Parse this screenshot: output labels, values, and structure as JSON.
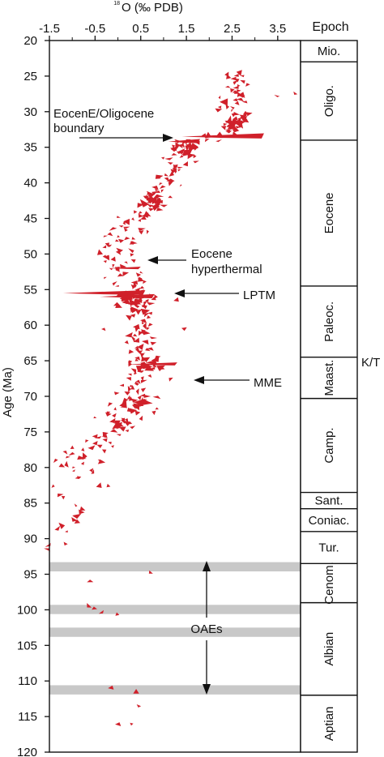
{
  "chart_data": {
    "type": "scatter",
    "x_title_sup": "18",
    "x_title": "O (‰ PDB)",
    "y_title": "Age (Ma)",
    "epoch_header": "Epoch",
    "xlim": [
      -1.5,
      4.0
    ],
    "ylim": [
      20,
      120
    ],
    "y_reversed": true,
    "x_ticks": [
      {
        "v": -1.5,
        "t": "-1.5"
      },
      {
        "v": -0.5,
        "t": "-0.5"
      },
      {
        "v": 0.5,
        "t": "0.5"
      },
      {
        "v": 1.5,
        "t": "1.5"
      },
      {
        "v": 2.5,
        "t": "2.5"
      },
      {
        "v": 3.5,
        "t": "3.5"
      }
    ],
    "x_minor": [
      -1.0,
      0.0,
      1.0,
      2.0,
      3.0
    ],
    "y_ticks": [
      20,
      25,
      30,
      35,
      40,
      45,
      50,
      55,
      60,
      65,
      70,
      75,
      80,
      85,
      90,
      95,
      100,
      105,
      110,
      115,
      120
    ],
    "series_color": "#d0202a",
    "band_color": "#c8c8c8",
    "trend": [
      {
        "age": 25,
        "x": 2.55,
        "s": 0.25
      },
      {
        "age": 30,
        "x": 2.6,
        "s": 0.3
      },
      {
        "age": 33,
        "x": 2.25,
        "s": 0.3
      },
      {
        "age": 35,
        "x": 1.45,
        "s": 0.25
      },
      {
        "age": 38,
        "x": 1.25,
        "s": 0.25
      },
      {
        "age": 42,
        "x": 0.8,
        "s": 0.3
      },
      {
        "age": 45,
        "x": 0.45,
        "s": 0.3
      },
      {
        "age": 48,
        "x": 0.0,
        "s": 0.35
      },
      {
        "age": 52,
        "x": 0.0,
        "s": 0.35
      },
      {
        "age": 56,
        "x": 0.45,
        "s": 0.3
      },
      {
        "age": 60,
        "x": 0.5,
        "s": 0.3
      },
      {
        "age": 66,
        "x": 0.55,
        "s": 0.35
      },
      {
        "age": 70,
        "x": 0.4,
        "s": 0.45
      },
      {
        "age": 74,
        "x": 0.05,
        "s": 0.45
      },
      {
        "age": 80,
        "x": -1.0,
        "s": 0.35
      },
      {
        "age": 86,
        "x": -0.85,
        "s": 0.3
      },
      {
        "age": 90,
        "x": -1.2,
        "s": 0.3
      }
    ],
    "dense_clusters": [
      {
        "x": 2.6,
        "age": 31.5,
        "n": 30
      },
      {
        "x": 1.45,
        "age": 35.0,
        "n": 18
      },
      {
        "x": 0.85,
        "age": 42.5,
        "n": 16
      },
      {
        "x": 0.3,
        "age": 56.5,
        "n": 26
      },
      {
        "x": 0.6,
        "age": 65.5,
        "n": 12
      },
      {
        "x": 0.45,
        "age": 71.0,
        "n": 16
      },
      {
        "x": 0.1,
        "age": 73.5,
        "n": 10
      }
    ],
    "excursions": [
      {
        "age": 33.5,
        "x0": 1.4,
        "x1": 3.2,
        "w": 1.0
      },
      {
        "age": 34.2,
        "x0": 1.1,
        "x1": 1.8,
        "w": 0.8
      },
      {
        "age": 55.5,
        "x0": -1.2,
        "x1": 0.6,
        "w": 0.9
      },
      {
        "age": 56.0,
        "x0": -0.4,
        "x1": 0.8,
        "w": 0.8
      },
      {
        "age": 52.0,
        "x0": -0.2,
        "x1": 0.5,
        "w": 0.5
      },
      {
        "age": 65.5,
        "x0": 0.2,
        "x1": 1.3,
        "w": 0.6
      }
    ],
    "scattered_points": [
      {
        "x": -0.3,
        "age": 60.5
      },
      {
        "x": 1.45,
        "age": 60.5
      },
      {
        "x": -0.4,
        "age": 82.5
      },
      {
        "x": -0.2,
        "age": 82.6
      },
      {
        "x": -1.55,
        "age": 91.5
      },
      {
        "x": -0.6,
        "age": 96.0
      },
      {
        "x": 0.7,
        "age": 94.8
      },
      {
        "x": -0.65,
        "age": 99.5
      },
      {
        "x": -0.5,
        "age": 99.8
      },
      {
        "x": -0.35,
        "age": 100.3
      },
      {
        "x": 0.0,
        "age": 100.7
      },
      {
        "x": -0.15,
        "age": 111.0
      },
      {
        "x": 0.4,
        "age": 111.5
      },
      {
        "x": 0.45,
        "age": 113.5
      },
      {
        "x": 0.0,
        "age": 116.0
      },
      {
        "x": 0.3,
        "age": 116.0
      },
      {
        "x": 3.9,
        "age": 27.5
      },
      {
        "x": 3.5,
        "age": 27.8
      },
      {
        "x": 1.15,
        "age": 67.5
      },
      {
        "x": 1.3,
        "age": 56.5
      }
    ],
    "oae_bands": [
      {
        "a0": 93.3,
        "a1": 94.6
      },
      {
        "a0": 99.3,
        "a1": 100.6
      },
      {
        "a0": 102.5,
        "a1": 103.8
      },
      {
        "a0": 110.6,
        "a1": 111.9
      }
    ],
    "epochs": [
      {
        "name": "Mio.",
        "a0": 20.0,
        "a1": 23.0
      },
      {
        "name": "Oligo.",
        "a0": 23.0,
        "a1": 34.0
      },
      {
        "name": "Eocene",
        "a0": 34.0,
        "a1": 54.5
      },
      {
        "name": "Paleoc.",
        "a0": 54.5,
        "a1": 64.5
      },
      {
        "name": "Maast.",
        "a0": 64.5,
        "a1": 70.3
      },
      {
        "name": "Camp.",
        "a0": 70.3,
        "a1": 83.5
      },
      {
        "name": "Sant.",
        "a0": 83.5,
        "a1": 85.8
      },
      {
        "name": "Coniac.",
        "a0": 85.8,
        "a1": 89.0
      },
      {
        "name": "Tur.",
        "a0": 89.0,
        "a1": 93.5
      },
      {
        "name": "Cenom.",
        "a0": 93.5,
        "a1": 99.0
      },
      {
        "name": "Albian",
        "a0": 99.0,
        "a1": 112.0
      },
      {
        "name": "Aptian",
        "a0": 112.0,
        "a1": 120.0
      }
    ],
    "kt_label": "K/T",
    "annotations": {
      "eocene_oligocene": {
        "line1": "EocenE/Oligocene",
        "line2": "boundary"
      },
      "eocene_hyperthermal": {
        "line1": "Eocene",
        "line2": "hyperthermal"
      },
      "lptm": "LPTM",
      "mme": "MME",
      "oaes": "OAEs"
    }
  }
}
